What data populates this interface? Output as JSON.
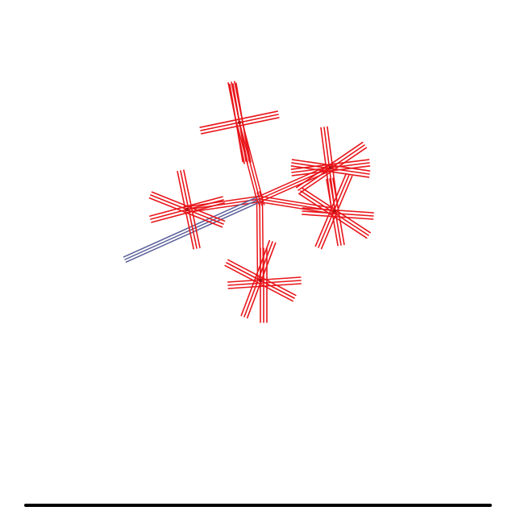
{
  "diagram": {
    "kind": "molecular-stick-model",
    "atoms": [
      {
        "id": "center",
        "element": "red-group"
      },
      {
        "id": "top",
        "element": "red-group"
      },
      {
        "id": "left",
        "element": "red-group"
      },
      {
        "id": "bottom",
        "element": "red-group"
      },
      {
        "id": "right-upper",
        "element": "red-group"
      },
      {
        "id": "right-lower",
        "element": "red-group"
      },
      {
        "id": "tail",
        "element": "blue-group"
      }
    ],
    "bonds": [
      {
        "from": "center",
        "to": "top",
        "color": "#e8161b"
      },
      {
        "from": "center",
        "to": "left",
        "color": "#e8161b"
      },
      {
        "from": "center",
        "to": "bottom",
        "color": "#e8161b"
      },
      {
        "from": "center",
        "to": "right-upper",
        "color": "#e8161b"
      },
      {
        "from": "center",
        "to": "right-lower",
        "color": "#e8161b"
      },
      {
        "from": "center",
        "to": "tail",
        "color": "#5a5f9a"
      }
    ],
    "colors": {
      "bond_red": "#e8161b",
      "bond_red_dark": "#b01214",
      "bond_blue": "#5a5f9a",
      "baseline": "#000000",
      "background": "#ffffff"
    }
  }
}
